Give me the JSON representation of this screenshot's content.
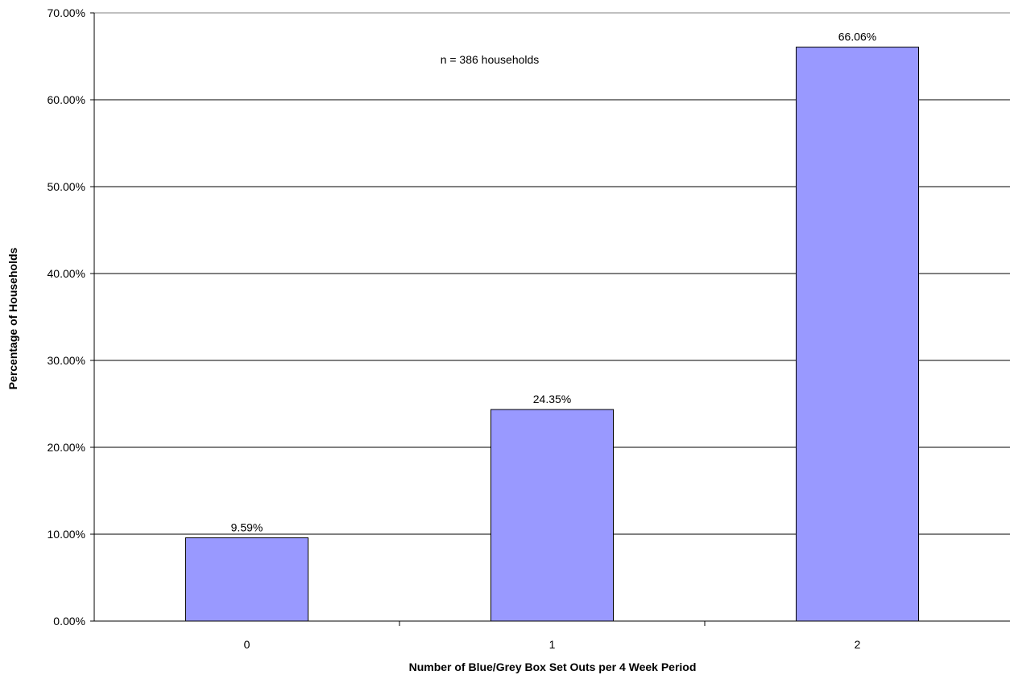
{
  "chart_data": {
    "type": "bar",
    "categories": [
      "0",
      "1",
      "2"
    ],
    "values": [
      9.59,
      24.35,
      66.06
    ],
    "data_labels": [
      "9.59%",
      "24.35%",
      "66.06%"
    ],
    "title": "",
    "xlabel": "Number of Blue/Grey Box Set Outs per 4 Week Period",
    "ylabel": "Percentage of Households",
    "ylim": [
      0,
      70
    ],
    "yticks": [
      0,
      10,
      20,
      30,
      40,
      50,
      60,
      70
    ],
    "ytick_labels": [
      "0.00%",
      "10.00%",
      "20.00%",
      "30.00%",
      "40.00%",
      "50.00%",
      "60.00%",
      "70.00%"
    ],
    "annotation": "n = 386 households",
    "grid": true,
    "legend": "none",
    "bar_color": "#9999ff",
    "bar_edge_color": "#000000"
  }
}
